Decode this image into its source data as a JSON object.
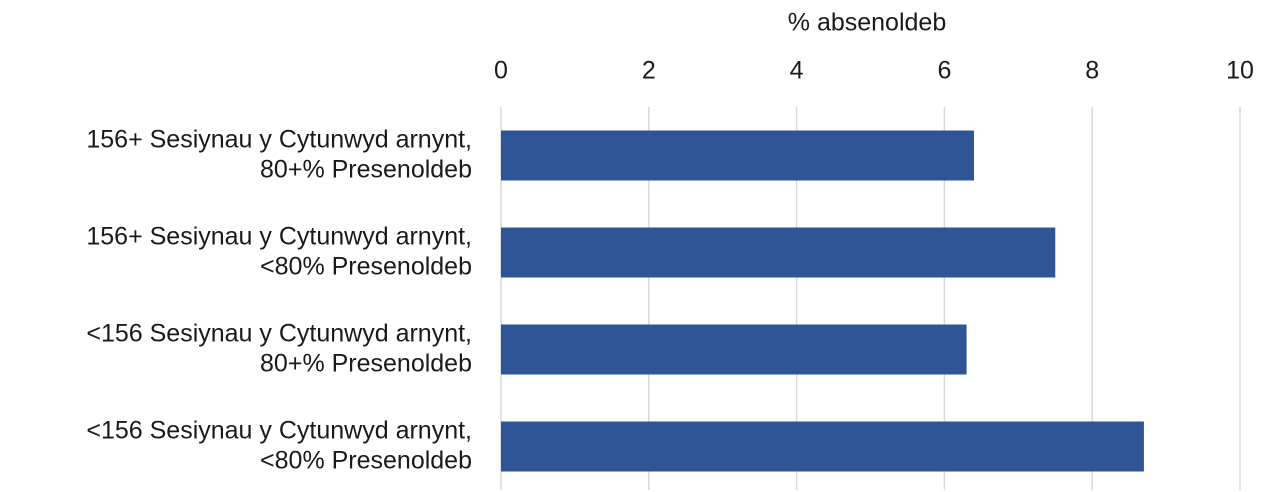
{
  "chart_data": {
    "type": "bar",
    "orientation": "horizontal",
    "x_label": "% absenoldeb",
    "categories": [
      "156+ Sesiynau y Cytunwyd arnynt, 80+% Presenoldeb",
      "156+ Sesiynau y Cytunwyd arnynt, <80% Presenoldeb",
      "<156 Sesiynau y Cytunwyd arnynt, 80+% Presenoldeb",
      "<156 Sesiynau y Cytunwyd arnynt, <80% Presenoldeb"
    ],
    "values": [
      6.4,
      7.5,
      6.3,
      8.7
    ],
    "color": "#2f5597",
    "xlim": [
      0,
      10
    ],
    "xticks": [
      0,
      2,
      4,
      6,
      8,
      10
    ],
    "grid": true
  }
}
